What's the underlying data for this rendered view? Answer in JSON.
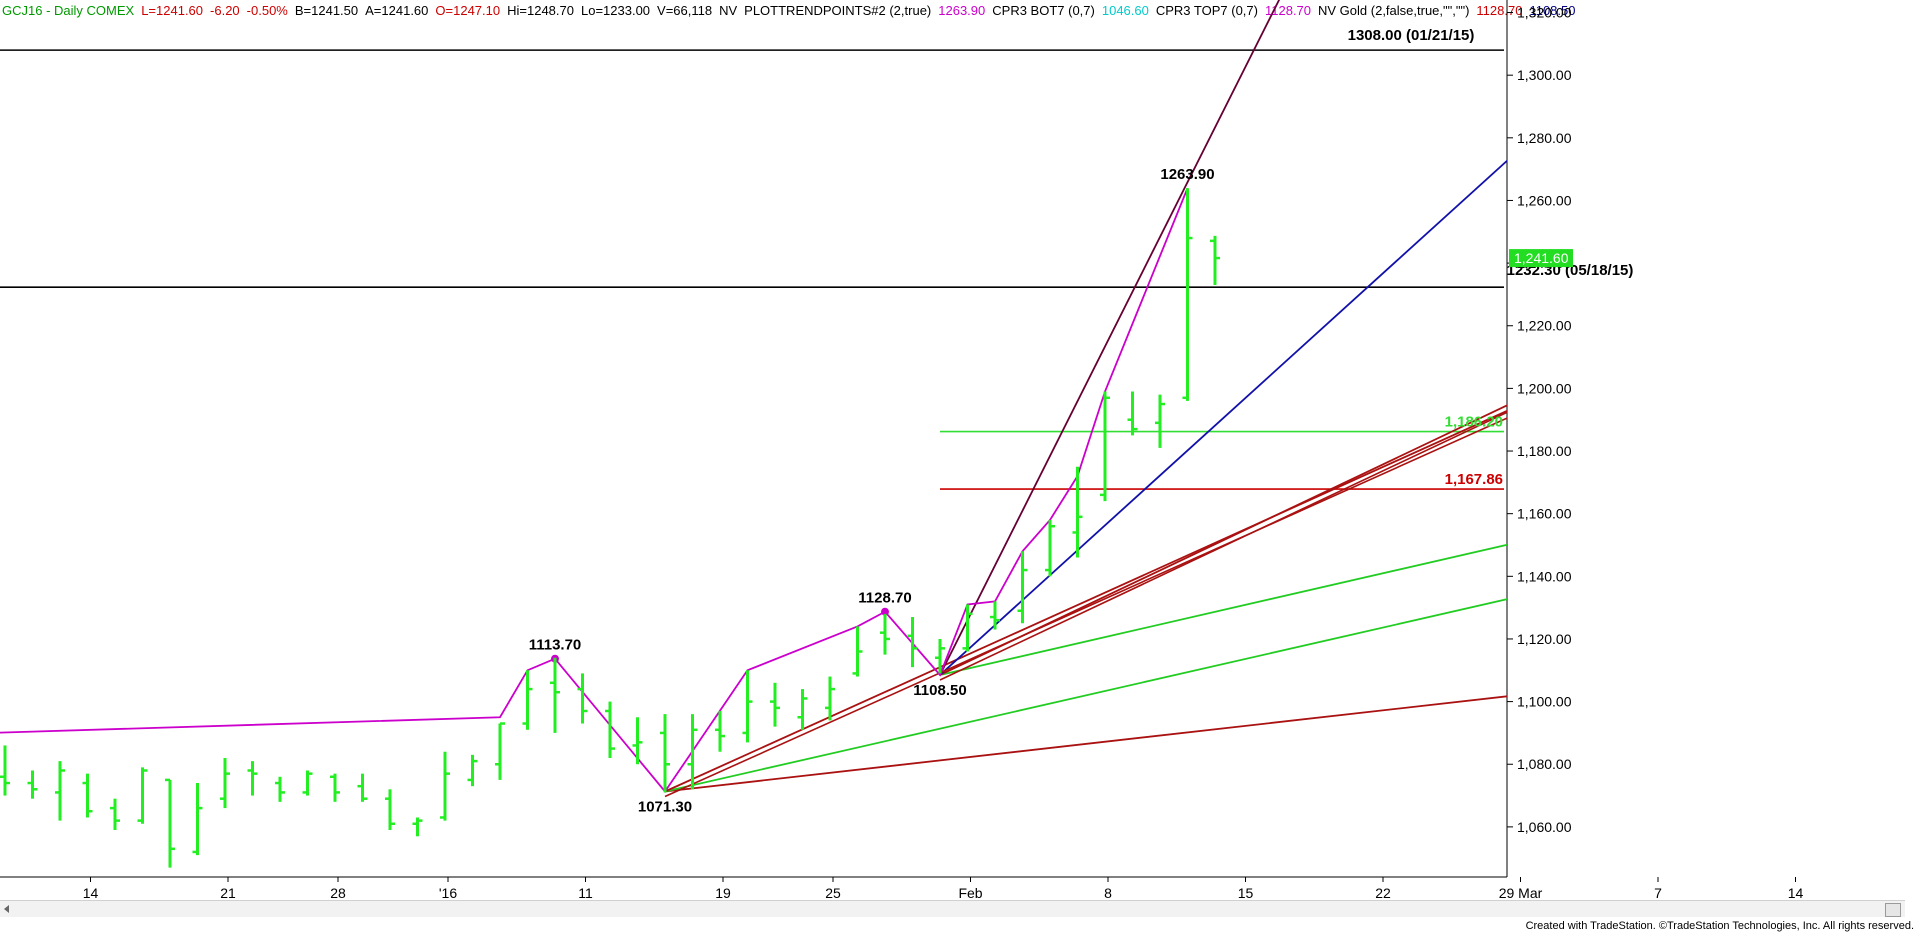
{
  "header": {
    "items": [
      {
        "text": "GCJ16 - Daily  COMEX",
        "color": "#009900"
      },
      {
        "text": "L=1241.60",
        "color": "#cc0000"
      },
      {
        "text": "-6.20",
        "color": "#cc0000"
      },
      {
        "text": "-0.50%",
        "color": "#cc0000"
      },
      {
        "text": "B=1241.50",
        "color": "#000000"
      },
      {
        "text": "A=1241.60",
        "color": "#000000"
      },
      {
        "text": "O=1247.10",
        "color": "#cc0000"
      },
      {
        "text": "Hi=1248.70",
        "color": "#000000"
      },
      {
        "text": "Lo=1233.00",
        "color": "#000000"
      },
      {
        "text": "V=66,118",
        "color": "#000000"
      },
      {
        "text": "NV",
        "color": "#000000"
      },
      {
        "text": "PLOTTRENDPOINTS#2 (2,true)",
        "color": "#000000"
      },
      {
        "text": "1263.90",
        "color": "#cc00cc"
      },
      {
        "text": "CPR3 BOT7 (0,7)",
        "color": "#000000"
      },
      {
        "text": "1046.60",
        "color": "#00cccc"
      },
      {
        "text": "CPR3 TOP7 (0,7)",
        "color": "#000000"
      },
      {
        "text": "1128.70",
        "color": "#cc00cc"
      },
      {
        "text": "NV Gold (2,false,true,\"\",\"\")",
        "color": "#000000"
      },
      {
        "text": "1128.70",
        "color": "#cc0000"
      },
      {
        "text": "1108.50",
        "color": "#000080"
      }
    ]
  },
  "footer": {
    "credit": "Created with TradeStation. ©TradeStation Technologies, Inc. All rights reserved."
  },
  "chart_data": {
    "type": "bar",
    "style": "OHLC bars",
    "ylim": [
      1044,
      1324
    ],
    "yticks": [
      1060,
      1080,
      1100,
      1120,
      1140,
      1160,
      1180,
      1200,
      1220,
      1240,
      1260,
      1280,
      1300,
      1320
    ],
    "ytick_labels": [
      "1,060.00",
      "1,080.00",
      "1,100.00",
      "1,120.00",
      "1,140.00",
      "1,160.00",
      "1,180.00",
      "1,200.00",
      "1,220.00",
      "1,240.00",
      "1,260.00",
      "1,280.00",
      "1,300.00",
      "1,320.00"
    ],
    "xticks": [
      {
        "i": 3,
        "label": "14"
      },
      {
        "i": 8,
        "label": "21"
      },
      {
        "i": 12,
        "label": "28"
      },
      {
        "i": 16,
        "label": "'16"
      },
      {
        "i": 21,
        "label": "11"
      },
      {
        "i": 26,
        "label": "19"
      },
      {
        "i": 30,
        "label": "25"
      },
      {
        "i": 35,
        "label": "Feb"
      },
      {
        "i": 40,
        "label": "8"
      },
      {
        "i": 45,
        "label": "15"
      },
      {
        "i": 50,
        "label": "22"
      },
      {
        "i": 55,
        "label": "29  Mar"
      },
      {
        "i": 60,
        "label": "7"
      },
      {
        "i": 65,
        "label": "14"
      }
    ],
    "bars": [
      {
        "i": 0,
        "o": 1076,
        "h": 1086,
        "l": 1070,
        "c": 1074
      },
      {
        "i": 1,
        "o": 1074,
        "h": 1078,
        "l": 1069,
        "c": 1072
      },
      {
        "i": 2,
        "o": 1071,
        "h": 1081,
        "l": 1062,
        "c": 1078
      },
      {
        "i": 3,
        "o": 1074,
        "h": 1077,
        "l": 1063,
        "c": 1065
      },
      {
        "i": 4,
        "o": 1066,
        "h": 1069,
        "l": 1059,
        "c": 1062
      },
      {
        "i": 5,
        "o": 1062,
        "h": 1079,
        "l": 1061,
        "c": 1078
      },
      {
        "i": 6,
        "o": 1075,
        "h": 1075,
        "l": 1047,
        "c": 1053
      },
      {
        "i": 7,
        "o": 1052,
        "h": 1074,
        "l": 1051,
        "c": 1066
      },
      {
        "i": 8,
        "o": 1069,
        "h": 1082,
        "l": 1066,
        "c": 1077
      },
      {
        "i": 9,
        "o": 1078,
        "h": 1081,
        "l": 1070,
        "c": 1077
      },
      {
        "i": 10,
        "o": 1074,
        "h": 1076,
        "l": 1068,
        "c": 1071
      },
      {
        "i": 11,
        "o": 1071,
        "h": 1078,
        "l": 1070,
        "c": 1077
      },
      {
        "i": 12,
        "o": 1076,
        "h": 1077,
        "l": 1068,
        "c": 1071
      },
      {
        "i": 13,
        "o": 1073,
        "h": 1077,
        "l": 1068,
        "c": 1069
      },
      {
        "i": 14,
        "o": 1069,
        "h": 1072,
        "l": 1059,
        "c": 1061
      },
      {
        "i": 15,
        "o": 1061,
        "h": 1063,
        "l": 1057,
        "c": 1062
      },
      {
        "i": 16,
        "o": 1063,
        "h": 1084,
        "l": 1062,
        "c": 1077
      },
      {
        "i": 17,
        "o": 1075,
        "h": 1083,
        "l": 1073,
        "c": 1081
      },
      {
        "i": 18,
        "o": 1080,
        "h": 1093,
        "l": 1075,
        "c": 1093
      },
      {
        "i": 19,
        "o": 1093,
        "h": 1110,
        "l": 1091,
        "c": 1104
      },
      {
        "i": 20,
        "o": 1106,
        "h": 1114,
        "l": 1090,
        "c": 1103
      },
      {
        "i": 21,
        "o": 1104,
        "h": 1109,
        "l": 1093,
        "c": 1097
      },
      {
        "i": 22,
        "o": 1097,
        "h": 1100,
        "l": 1082,
        "c": 1085
      },
      {
        "i": 23,
        "o": 1086,
        "h": 1095,
        "l": 1080,
        "c": 1087
      },
      {
        "i": 24,
        "o": 1090,
        "h": 1096,
        "l": 1071,
        "c": 1080
      },
      {
        "i": 25,
        "o": 1080,
        "h": 1096,
        "l": 1072,
        "c": 1091
      },
      {
        "i": 26,
        "o": 1091,
        "h": 1097,
        "l": 1084,
        "c": 1089
      },
      {
        "i": 27,
        "o": 1090,
        "h": 1110,
        "l": 1087,
        "c": 1100
      },
      {
        "i": 28,
        "o": 1100,
        "h": 1106,
        "l": 1092,
        "c": 1098
      },
      {
        "i": 29,
        "o": 1095,
        "h": 1104,
        "l": 1091,
        "c": 1101
      },
      {
        "i": 30,
        "o": 1098,
        "h": 1108,
        "l": 1094,
        "c": 1104
      },
      {
        "i": 31,
        "o": 1109,
        "h": 1124,
        "l": 1108,
        "c": 1116
      },
      {
        "i": 32,
        "o": 1122,
        "h": 1128,
        "l": 1115,
        "c": 1120
      },
      {
        "i": 33,
        "o": 1121,
        "h": 1127,
        "l": 1111,
        "c": 1117
      },
      {
        "i": 34,
        "o": 1114,
        "h": 1120,
        "l": 1109,
        "c": 1117
      },
      {
        "i": 35,
        "o": 1117,
        "h": 1131,
        "l": 1116,
        "c": 1128
      },
      {
        "i": 36,
        "o": 1127,
        "h": 1132,
        "l": 1123,
        "c": 1126
      },
      {
        "i": 37,
        "o": 1129,
        "h": 1148,
        "l": 1125,
        "c": 1142
      },
      {
        "i": 38,
        "o": 1142,
        "h": 1158,
        "l": 1140,
        "c": 1156
      },
      {
        "i": 39,
        "o": 1154,
        "h": 1175,
        "l": 1146,
        "c": 1159
      },
      {
        "i": 40,
        "o": 1166,
        "h": 1199,
        "l": 1164,
        "c": 1197
      },
      {
        "i": 41,
        "o": 1190,
        "h": 1199,
        "l": 1185,
        "c": 1187
      },
      {
        "i": 42,
        "o": 1189,
        "h": 1198,
        "l": 1181,
        "c": 1195
      },
      {
        "i": 43,
        "o": 1197,
        "h": 1263.9,
        "l": 1196,
        "c": 1248
      },
      {
        "i": 44,
        "o": 1247.1,
        "h": 1248.7,
        "l": 1233,
        "c": 1241.6
      }
    ],
    "horizontal_lines": [
      {
        "value": 1308.0,
        "label": "1308.00 (01/21/15)",
        "color": "#000000",
        "start_i": -0.5
      },
      {
        "value": 1232.3,
        "label": "1232.30 (05/18/15)",
        "color": "#000000",
        "start_i": -0.5
      },
      {
        "value": 1186.2,
        "label": "1,186.20",
        "color": "#33dd33",
        "start_i": 34
      },
      {
        "value": 1167.86,
        "label": "1,167.86",
        "color": "#cc0000",
        "start_i": 34
      }
    ],
    "swing_line": {
      "color": "#cc00cc",
      "points": [
        {
          "i": -0.5,
          "v": 1090
        },
        {
          "i": 18,
          "v": 1095
        },
        {
          "i": 19,
          "v": 1110
        },
        {
          "i": 20,
          "v": 1113.7
        },
        {
          "i": 24,
          "v": 1071.3
        },
        {
          "i": 27,
          "v": 1110
        },
        {
          "i": 31,
          "v": 1124
        },
        {
          "i": 32,
          "v": 1128.7
        },
        {
          "i": 34,
          "v": 1108.5
        },
        {
          "i": 35,
          "v": 1131
        },
        {
          "i": 36,
          "v": 1132
        },
        {
          "i": 37,
          "v": 1148
        },
        {
          "i": 38,
          "v": 1158
        },
        {
          "i": 39,
          "v": 1172
        },
        {
          "i": 40,
          "v": 1199
        },
        {
          "i": 43,
          "v": 1263.9
        }
      ],
      "markers": [
        20,
        32
      ]
    },
    "pivot_labels": [
      {
        "i": 20,
        "v": 1113.7,
        "label": "1113.70",
        "pos": "above"
      },
      {
        "i": 24,
        "v": 1071.3,
        "label": "1071.30",
        "pos": "below"
      },
      {
        "i": 32,
        "v": 1128.7,
        "label": "1128.70",
        "pos": "above"
      },
      {
        "i": 34,
        "v": 1108.5,
        "label": "1108.50",
        "pos": "below"
      },
      {
        "i": 43,
        "v": 1263.9,
        "label": "1263.90",
        "pos": "above"
      }
    ],
    "gann_lines": [
      {
        "color": "#aa1111",
        "from": {
          "i": 24,
          "v": 1071.3
        },
        "to": {
          "i": 65.5,
          "v": 1112.5
        }
      },
      {
        "color": "#22cc22",
        "from": {
          "i": 24,
          "v": 1071.3
        },
        "to": {
          "i": 65.5,
          "v": 1154.5
        }
      },
      {
        "color": "#aa1111",
        "from": {
          "i": 24,
          "v": 1071.3
        },
        "to": {
          "i": 65.5,
          "v": 1236
        }
      },
      {
        "color": "#22cc22",
        "from": {
          "i": 34,
          "v": 1108.5
        },
        "to": {
          "i": 65.5,
          "v": 1172
        }
      },
      {
        "color": "#aa1111",
        "from": {
          "i": 34,
          "v": 1108.5
        },
        "to": {
          "i": 65.5,
          "v": 1240
        }
      },
      {
        "color": "#1111aa",
        "from": {
          "i": 34,
          "v": 1108.5
        },
        "to": {
          "i": 60.5,
          "v": 1319.5
        }
      },
      {
        "color": "#660033",
        "from": {
          "i": 34,
          "v": 1108.5
        },
        "to": {
          "i": 46.5,
          "v": 1327
        }
      }
    ],
    "last_price": {
      "value": 1241.6,
      "label": "1,241.60",
      "color": "#22dd22"
    }
  }
}
